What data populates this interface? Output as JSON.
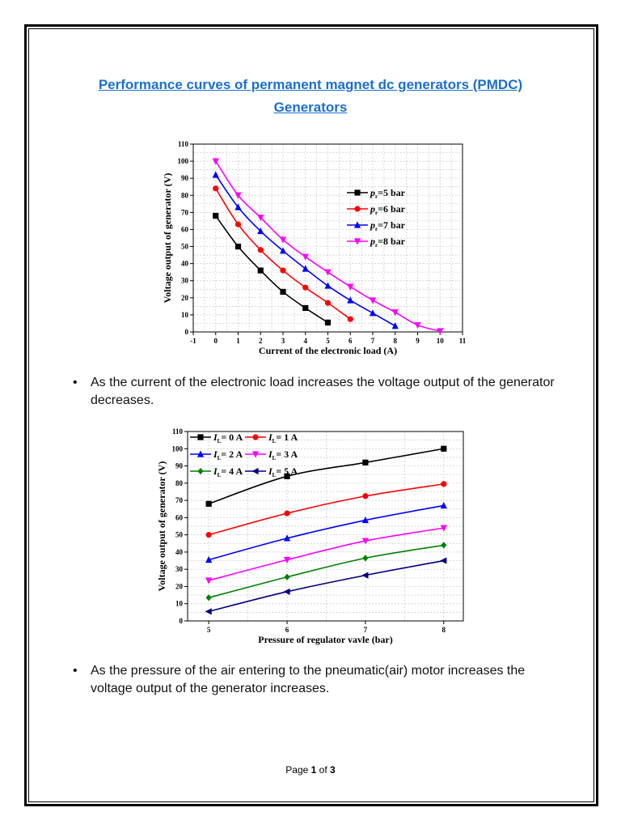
{
  "title_line1": "Performance curves of permanent magnet dc generators (PMDC)",
  "title_line2": "Generators",
  "bullets": [
    "As the current of the electronic load increases the voltage output of the generator decreases.",
    "As the pressure of the air entering to the pneumatic(air) motor increases the voltage output of the generator increases."
  ],
  "footer": {
    "prefix": "Page ",
    "current": "1",
    "middle": " of ",
    "total": "3"
  },
  "chart_data": [
    {
      "type": "line",
      "xlabel": "Current of the electronic load (A)",
      "ylabel": "Voltage output of generator (V)",
      "xlim": [
        -1,
        11
      ],
      "ylim": [
        0,
        110
      ],
      "xticks": [
        -1,
        0,
        1,
        2,
        3,
        4,
        5,
        6,
        7,
        8,
        9,
        10,
        11
      ],
      "yticks": [
        0,
        10,
        20,
        30,
        40,
        50,
        60,
        70,
        80,
        90,
        100,
        110
      ],
      "grid": true,
      "legend_position": "right",
      "series": [
        {
          "name": "pr=5 bar",
          "sym": "p",
          "sub": "r",
          "rest": "=5 bar",
          "color": "#000000",
          "marker": "square",
          "x": [
            0,
            1,
            2,
            3,
            4,
            5
          ],
          "y": [
            68,
            50,
            36,
            23.5,
            14,
            5.5
          ]
        },
        {
          "name": "pr=6 bar",
          "sym": "p",
          "sub": "r",
          "rest": "=6 bar",
          "color": "#ff0000",
          "marker": "circle",
          "x": [
            0,
            1,
            2,
            3,
            4,
            5,
            6
          ],
          "y": [
            84,
            63,
            48,
            36,
            26,
            17,
            7.5
          ]
        },
        {
          "name": "pr=7 bar",
          "sym": "p",
          "sub": "r",
          "rest": "=7 bar",
          "color": "#0000ff",
          "marker": "triangle-up",
          "x": [
            0,
            1,
            2,
            3,
            4,
            5,
            6,
            7,
            8
          ],
          "y": [
            92,
            73,
            59,
            47.5,
            37,
            27,
            18.5,
            11,
            3.5
          ]
        },
        {
          "name": "pr=8 bar",
          "sym": "p",
          "sub": "r",
          "rest": "=8 bar",
          "color": "#ff00ff",
          "marker": "triangle-down",
          "x": [
            0,
            1,
            2,
            3,
            4,
            5,
            6,
            7,
            8,
            9,
            10
          ],
          "y": [
            100,
            80,
            67,
            54,
            44,
            35,
            26.5,
            18.5,
            11.5,
            4,
            0.5
          ]
        }
      ]
    },
    {
      "type": "line",
      "xlabel": "Pressure of regulator vavle (bar)",
      "ylabel": "Voltage output of generator (V)",
      "xlim": [
        4.73,
        8.25
      ],
      "ylim": [
        0,
        110
      ],
      "xticks": [
        5,
        6,
        7,
        8
      ],
      "yticks": [
        0,
        10,
        20,
        30,
        40,
        50,
        60,
        70,
        80,
        90,
        100,
        110
      ],
      "grid": true,
      "legend_position": "top-left",
      "series": [
        {
          "name": "IL= 0 A",
          "sym": "I",
          "sub": "L",
          "rest": "= 0 A",
          "color": "#000000",
          "marker": "square",
          "x": [
            5,
            6,
            7,
            8
          ],
          "y": [
            68,
            84,
            92,
            100
          ]
        },
        {
          "name": "IL= 1 A",
          "sym": "I",
          "sub": "L",
          "rest": "= 1 A",
          "color": "#ff0000",
          "marker": "circle",
          "x": [
            5,
            6,
            7,
            8
          ],
          "y": [
            50,
            62.5,
            72.5,
            79.5
          ]
        },
        {
          "name": "IL= 2 A",
          "sym": "I",
          "sub": "L",
          "rest": "= 2 A",
          "color": "#0000ff",
          "marker": "triangle-up",
          "x": [
            5,
            6,
            7,
            8
          ],
          "y": [
            35.5,
            48,
            58.5,
            67
          ]
        },
        {
          "name": "IL= 3 A",
          "sym": "I",
          "sub": "L",
          "rest": "= 3 A",
          "color": "#ff00ff",
          "marker": "triangle-down",
          "x": [
            5,
            6,
            7,
            8
          ],
          "y": [
            23.5,
            35.5,
            46.5,
            54
          ]
        },
        {
          "name": "IL= 4 A",
          "sym": "I",
          "sub": "L",
          "rest": "= 4 A",
          "color": "#008000",
          "marker": "diamond",
          "x": [
            5,
            6,
            7,
            8
          ],
          "y": [
            13.5,
            25.5,
            36.5,
            44
          ]
        },
        {
          "name": "IL= 5 A",
          "sym": "I",
          "sub": "L",
          "rest": "= 5 A",
          "color": "#000080",
          "marker": "triangle-left",
          "x": [
            5,
            6,
            7,
            8
          ],
          "y": [
            5.5,
            17,
            26.5,
            35
          ]
        }
      ]
    }
  ]
}
